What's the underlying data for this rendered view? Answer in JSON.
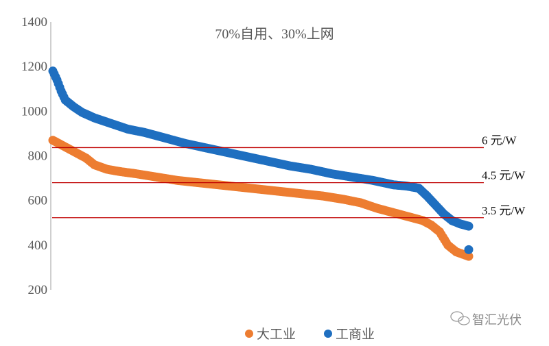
{
  "chart_data": {
    "type": "scatter",
    "title": "70%自用、30%上网",
    "xlabel": "",
    "ylabel": "",
    "ylim": [
      200,
      1400
    ],
    "yticks": [
      1400,
      1200,
      1000,
      800,
      600,
      400,
      200
    ],
    "xlim": [
      0,
      100
    ],
    "grid": false,
    "legend_position": "bottom",
    "colors": {
      "大工业": "#ed7d31",
      "工商业": "#1f6fc0",
      "reference": "#c00000"
    },
    "reference_lines": [
      {
        "label": "6 元/W",
        "y": 837
      },
      {
        "label": "4.5 元/W",
        "y": 680
      },
      {
        "label": "3.5 元/W",
        "y": 523
      }
    ],
    "series": [
      {
        "name": "大工业",
        "color": "#ed7d31",
        "x": [
          0,
          2,
          4,
          6,
          8,
          10,
          13,
          16,
          20,
          25,
          30,
          35,
          40,
          45,
          50,
          55,
          60,
          65,
          70,
          74,
          78,
          82,
          85,
          87,
          89,
          91,
          93,
          95,
          97,
          100
        ],
        "y": [
          870,
          850,
          830,
          810,
          790,
          760,
          740,
          730,
          720,
          705,
          690,
          680,
          670,
          660,
          650,
          640,
          630,
          620,
          605,
          590,
          565,
          545,
          530,
          520,
          510,
          490,
          460,
          400,
          370,
          350
        ]
      },
      {
        "name": "工商业",
        "color": "#1f6fc0",
        "x": [
          0,
          1,
          2,
          3,
          5,
          7,
          10,
          14,
          18,
          22,
          27,
          32,
          37,
          42,
          47,
          52,
          57,
          62,
          67,
          72,
          77,
          82,
          85,
          88,
          90,
          92,
          94,
          96,
          98,
          100
        ],
        "y": [
          1180,
          1140,
          1090,
          1050,
          1020,
          995,
          970,
          945,
          920,
          905,
          880,
          855,
          835,
          815,
          795,
          775,
          755,
          740,
          720,
          705,
          690,
          670,
          665,
          655,
          620,
          580,
          540,
          510,
          495,
          485
        ]
      },
      {
        "name": "工商业-outlier",
        "color": "#1f6fc0",
        "x": [
          100
        ],
        "y": [
          380
        ]
      }
    ]
  },
  "watermark": {
    "text": "智汇光伏",
    "icon": "wechat-icon"
  }
}
